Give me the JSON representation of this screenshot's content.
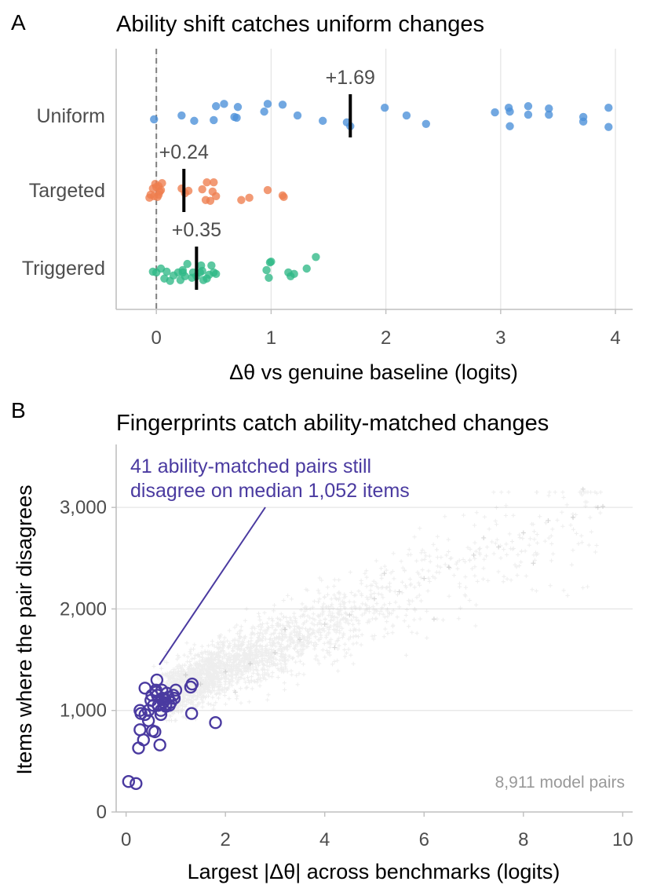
{
  "colors": {
    "uniform": "#4a90d9",
    "targeted": "#ee7d4e",
    "triggered": "#2fb886",
    "highlight": "#4a3aa0",
    "background_points": "#b3b3b3",
    "grid": "#e5e5e5",
    "axis": "#bfbfbf"
  },
  "chart_data": [
    {
      "type": "scatter",
      "panel_label": "A",
      "title": "Ability shift catches uniform changes",
      "xlabel": "Δθ vs genuine baseline (logits)",
      "ylabel": "",
      "xlim": [
        -0.35,
        4.15
      ],
      "xticks": [
        0,
        1,
        2,
        3,
        4
      ],
      "xtick_labels": [
        "0",
        "1",
        "2",
        "3",
        "4"
      ],
      "reference_line_x": 0,
      "grid": "vertical",
      "categories": [
        "Uniform",
        "Targeted",
        "Triggered"
      ],
      "series": [
        {
          "category": "Uniform",
          "color": "#4a90d9",
          "mean": 1.69,
          "mean_label": "+1.69",
          "points": [
            [
              -0.02,
              0.04
            ],
            [
              0.22,
              -0.01
            ],
            [
              0.33,
              0.06
            ],
            [
              0.5,
              0.05
            ],
            [
              0.52,
              -0.13
            ],
            [
              0.59,
              -0.16
            ],
            [
              0.68,
              0.01
            ],
            [
              0.7,
              0.02
            ],
            [
              0.71,
              -0.12
            ],
            [
              0.94,
              -0.06
            ],
            [
              0.97,
              -0.16
            ],
            [
              1.1,
              -0.15
            ],
            [
              1.23,
              -0.01
            ],
            [
              1.45,
              0.06
            ],
            [
              1.66,
              0.08
            ],
            [
              1.69,
              0.13
            ],
            [
              1.99,
              -0.11
            ],
            [
              2.18,
              -0.01
            ],
            [
              2.35,
              0.1
            ],
            [
              2.95,
              -0.05
            ],
            [
              3.07,
              -0.11
            ],
            [
              3.08,
              -0.06
            ],
            [
              3.08,
              0.13
            ],
            [
              3.24,
              -0.13
            ],
            [
              3.24,
              -0.02
            ],
            [
              3.42,
              -0.1
            ],
            [
              3.42,
              -0.02
            ],
            [
              3.72,
              0.01
            ],
            [
              3.72,
              0.07
            ],
            [
              3.94,
              -0.11
            ],
            [
              3.94,
              0.14
            ]
          ]
        },
        {
          "category": "Targeted",
          "color": "#ee7d4e",
          "mean": 0.24,
          "mean_label": "+0.24",
          "points": [
            [
              -0.06,
              0.09
            ],
            [
              -0.05,
              0.05
            ],
            [
              -0.03,
              -0.03
            ],
            [
              -0.02,
              0.07
            ],
            [
              -0.01,
              -0.09
            ],
            [
              0.0,
              -0.05
            ],
            [
              0.01,
              0.08
            ],
            [
              0.02,
              -0.06
            ],
            [
              0.03,
              0.01
            ],
            [
              0.04,
              -0.01
            ],
            [
              0.05,
              -0.1
            ],
            [
              0.02,
              0.05
            ],
            [
              0.22,
              -0.03
            ],
            [
              0.25,
              0.03
            ],
            [
              0.28,
              0.0
            ],
            [
              0.4,
              -0.02
            ],
            [
              0.43,
              0.12
            ],
            [
              0.44,
              -0.11
            ],
            [
              0.47,
              0.13
            ],
            [
              0.49,
              0.01
            ],
            [
              0.5,
              -0.11
            ],
            [
              0.52,
              0.07
            ],
            [
              0.74,
              0.12
            ],
            [
              0.81,
              0.09
            ],
            [
              0.97,
              -0.01
            ],
            [
              1.1,
              0.06
            ],
            [
              1.11,
              0.08
            ]
          ]
        },
        {
          "category": "Triggered",
          "color": "#2fb886",
          "mean": 0.35,
          "mean_label": "+0.35",
          "points": [
            [
              -0.03,
              0.04
            ],
            [
              0.0,
              0.05
            ],
            [
              0.04,
              0.0
            ],
            [
              0.07,
              0.13
            ],
            [
              0.09,
              0.04
            ],
            [
              0.12,
              0.16
            ],
            [
              0.15,
              0.09
            ],
            [
              0.19,
              0.05
            ],
            [
              0.21,
              0.15
            ],
            [
              0.23,
              0.02
            ],
            [
              0.23,
              0.05
            ],
            [
              0.25,
              0.1
            ],
            [
              0.27,
              -0.06
            ],
            [
              0.31,
              0.12
            ],
            [
              0.32,
              0.05
            ],
            [
              0.35,
              0.1
            ],
            [
              0.38,
              0.05
            ],
            [
              0.39,
              -0.04
            ],
            [
              0.4,
              0.03
            ],
            [
              0.41,
              0.15
            ],
            [
              0.44,
              0.13
            ],
            [
              0.46,
              0.08
            ],
            [
              0.48,
              -0.04
            ],
            [
              0.5,
              0.05
            ],
            [
              0.52,
              0.07
            ],
            [
              0.96,
              0.02
            ],
            [
              0.98,
              0.12
            ],
            [
              0.99,
              -0.08
            ],
            [
              1.0,
              -0.09
            ],
            [
              1.15,
              0.05
            ],
            [
              1.17,
              0.1
            ],
            [
              1.2,
              0.07
            ],
            [
              1.31,
              0.0
            ],
            [
              1.39,
              -0.15
            ]
          ]
        }
      ]
    },
    {
      "type": "scatter",
      "panel_label": "B",
      "title": "Fingerprints catch ability-matched changes",
      "xlabel": "Largest |Δθ| across benchmarks (logits)",
      "ylabel": "Items where the pair disagrees",
      "xlim": [
        -0.2,
        10.2
      ],
      "ylim": [
        0,
        3620
      ],
      "xticks": [
        0,
        2,
        4,
        6,
        8,
        10
      ],
      "xtick_labels": [
        "0",
        "2",
        "4",
        "6",
        "8",
        "10"
      ],
      "yticks": [
        0,
        1000,
        2000,
        3000
      ],
      "ytick_labels": [
        "0",
        "1,000",
        "2,000",
        "3,000"
      ],
      "grid": "horizontal",
      "annotation": {
        "lines": [
          "41 ability-matched pairs still",
          "disagree on median 1,052 items"
        ],
        "pointer_to": [
          0.67,
          1450
        ]
      },
      "background_note": "8,911 model pairs",
      "background_series": {
        "count": 8911,
        "trend": {
          "x_from": 0.5,
          "x_to": 10,
          "y_at_0": 1000,
          "slope": 210,
          "spread": 100
        },
        "sample": [
          [
            1.0,
            1150
          ],
          [
            1.5,
            1260
          ],
          [
            2.0,
            1380
          ],
          [
            2.5,
            1460
          ],
          [
            3.0,
            1570
          ],
          [
            3.5,
            1700
          ],
          [
            4.0,
            1850
          ],
          [
            4.5,
            1940
          ],
          [
            5.0,
            2100
          ],
          [
            5.5,
            2170
          ],
          [
            6.0,
            2300
          ],
          [
            6.5,
            2410
          ],
          [
            7.0,
            2530
          ],
          [
            7.5,
            2610
          ],
          [
            8.0,
            2750
          ],
          [
            8.5,
            2870
          ],
          [
            9.0,
            2900
          ],
          [
            9.5,
            3000
          ],
          [
            1.2,
            1350
          ],
          [
            2.2,
            1180
          ],
          [
            3.2,
            1800
          ],
          [
            4.2,
            1620
          ],
          [
            5.2,
            2350
          ],
          [
            6.2,
            1900
          ],
          [
            7.2,
            2700
          ],
          [
            8.2,
            2450
          ],
          [
            9.2,
            3180
          ],
          [
            9.6,
            3010
          ]
        ]
      },
      "highlight_series": {
        "name": "41 ability-matched pairs",
        "color": "#4a3aa0",
        "points": [
          [
            0.05,
            300
          ],
          [
            0.2,
            280
          ],
          [
            0.25,
            630
          ],
          [
            0.28,
            810
          ],
          [
            0.28,
            1000
          ],
          [
            0.3,
            970
          ],
          [
            0.35,
            710
          ],
          [
            0.38,
            960
          ],
          [
            0.38,
            1220
          ],
          [
            0.45,
            1000
          ],
          [
            0.45,
            900
          ],
          [
            0.5,
            1100
          ],
          [
            0.52,
            1150
          ],
          [
            0.53,
            800
          ],
          [
            0.55,
            1050
          ],
          [
            0.58,
            790
          ],
          [
            0.6,
            1200
          ],
          [
            0.6,
            1180
          ],
          [
            0.62,
            1300
          ],
          [
            0.63,
            1150
          ],
          [
            0.65,
            1050
          ],
          [
            0.68,
            660
          ],
          [
            0.7,
            1000
          ],
          [
            0.7,
            960
          ],
          [
            0.72,
            1200
          ],
          [
            0.73,
            1120
          ],
          [
            0.75,
            1080
          ],
          [
            0.78,
            1110
          ],
          [
            0.8,
            1060
          ],
          [
            0.8,
            1040
          ],
          [
            0.82,
            1170
          ],
          [
            0.85,
            1130
          ],
          [
            0.87,
            1050
          ],
          [
            0.9,
            1080
          ],
          [
            0.95,
            1150
          ],
          [
            0.97,
            1120
          ],
          [
            1.0,
            1200
          ],
          [
            1.3,
            1230
          ],
          [
            1.32,
            970
          ],
          [
            1.33,
            1260
          ],
          [
            1.8,
            880
          ]
        ]
      }
    }
  ]
}
